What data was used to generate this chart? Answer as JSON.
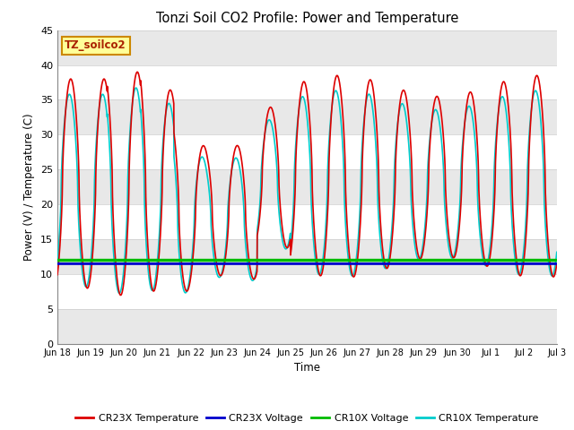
{
  "title": "Tonzi Soil CO2 Profile: Power and Temperature",
  "ylabel": "Power (V) / Temperature (C)",
  "xlabel": "Time",
  "ylim": [
    0,
    45
  ],
  "yticks": [
    0,
    5,
    10,
    15,
    20,
    25,
    30,
    35,
    40,
    45
  ],
  "xlim_start": 0,
  "xlim_end": 15,
  "xtick_labels": [
    "Jun 18",
    "Jun 19",
    "Jun 20",
    "Jun 21",
    "Jun 22",
    "Jun 23",
    "Jun 24",
    "Jun 25",
    "Jun 26",
    "Jun 27",
    "Jun 28",
    "Jun 29",
    "Jun 30",
    "Jul 1",
    "Jul 2",
    "Jul 3"
  ],
  "cr23x_voltage_value": 11.5,
  "cr10x_voltage_value": 12.0,
  "fig_bg_color": "#ffffff",
  "plot_bg_color": "#ffffff",
  "band_color_even": "#e8e8e8",
  "band_color_odd": "#ffffff",
  "legend_label_box": "TZ_soilco2",
  "legend_label_box_color": "#ffff99",
  "legend_label_box_border": "#cc8800",
  "legend_label_text_color": "#aa2200",
  "cr23x_temp_color": "#dd0000",
  "cr23x_volt_color": "#0000cc",
  "cr10x_volt_color": "#00bb00",
  "cr10x_temp_color": "#00cccc",
  "grid_color": "#cccccc",
  "line_width": 1.2
}
